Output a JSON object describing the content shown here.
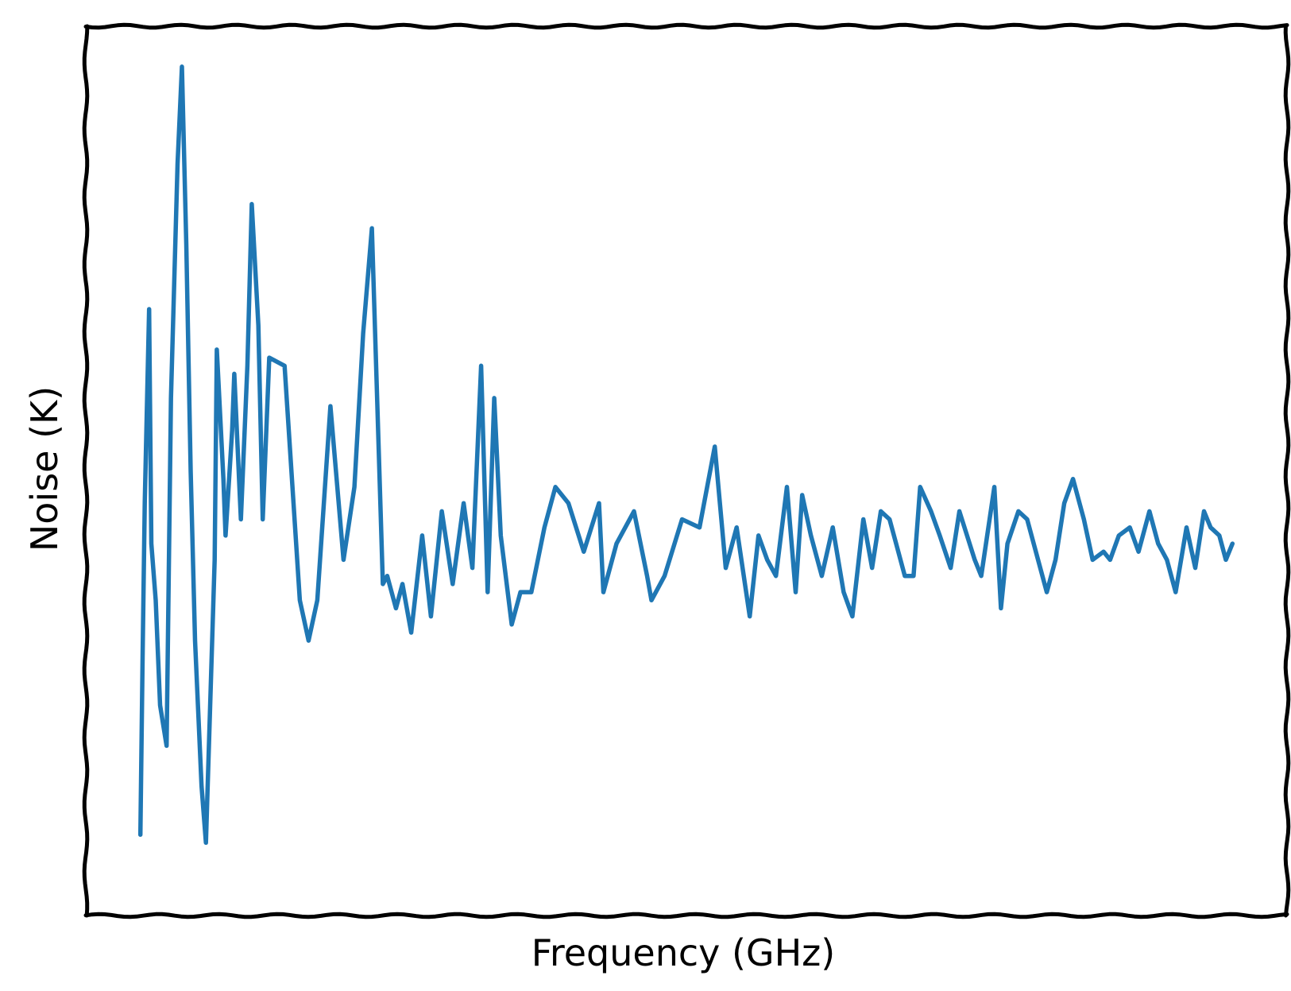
{
  "chart_data": {
    "type": "line",
    "xlabel": "Frequency (GHz)",
    "ylabel": "Noise (K)",
    "xlim": [
      -2.5,
      52.5
    ],
    "ylim": [
      -0.5,
      10.5
    ],
    "grid": false,
    "line_color": "#1f77b4",
    "series": [
      {
        "points": [
          [
            0.0,
            0.5
          ],
          [
            0.1,
            2.7
          ],
          [
            0.2,
            4.6
          ],
          [
            0.4,
            7.0
          ],
          [
            0.5,
            4.1
          ],
          [
            0.7,
            3.4
          ],
          [
            0.9,
            2.1
          ],
          [
            1.2,
            1.6
          ],
          [
            1.4,
            5.9
          ],
          [
            1.7,
            8.8
          ],
          [
            1.9,
            10.0
          ],
          [
            2.1,
            7.8
          ],
          [
            2.3,
            5.0
          ],
          [
            2.5,
            2.9
          ],
          [
            2.8,
            1.1
          ],
          [
            3.0,
            0.4
          ],
          [
            3.4,
            3.9
          ],
          [
            3.5,
            6.5
          ],
          [
            3.8,
            4.9
          ],
          [
            3.9,
            4.2
          ],
          [
            4.2,
            5.5
          ],
          [
            4.3,
            6.2
          ],
          [
            4.6,
            4.4
          ],
          [
            4.9,
            6.3
          ],
          [
            5.1,
            8.3
          ],
          [
            5.4,
            6.8
          ],
          [
            5.6,
            4.4
          ],
          [
            5.9,
            6.4
          ],
          [
            6.6,
            6.3
          ],
          [
            7.3,
            3.4
          ],
          [
            7.7,
            2.9
          ],
          [
            8.1,
            3.4
          ],
          [
            8.7,
            5.8
          ],
          [
            9.3,
            3.9
          ],
          [
            9.8,
            4.8
          ],
          [
            10.2,
            6.7
          ],
          [
            10.6,
            8.0
          ],
          [
            11.1,
            3.6
          ],
          [
            11.3,
            3.7
          ],
          [
            11.7,
            3.3
          ],
          [
            12.0,
            3.6
          ],
          [
            12.4,
            3.0
          ],
          [
            12.9,
            4.2
          ],
          [
            13.3,
            3.2
          ],
          [
            13.8,
            4.5
          ],
          [
            14.3,
            3.6
          ],
          [
            14.8,
            4.6
          ],
          [
            15.2,
            3.8
          ],
          [
            15.6,
            6.3
          ],
          [
            15.9,
            3.5
          ],
          [
            16.2,
            5.9
          ],
          [
            16.5,
            4.2
          ],
          [
            17.0,
            3.1
          ],
          [
            17.4,
            3.5
          ],
          [
            17.9,
            3.5
          ],
          [
            18.5,
            4.3
          ],
          [
            19.0,
            4.8
          ],
          [
            19.6,
            4.6
          ],
          [
            20.3,
            4.0
          ],
          [
            21.0,
            4.6
          ],
          [
            21.2,
            3.5
          ],
          [
            21.8,
            4.1
          ],
          [
            22.6,
            4.5
          ],
          [
            23.2,
            3.7
          ],
          [
            23.4,
            3.4
          ],
          [
            24.0,
            3.7
          ],
          [
            24.8,
            4.4
          ],
          [
            25.6,
            4.3
          ],
          [
            26.3,
            5.3
          ],
          [
            26.8,
            3.8
          ],
          [
            27.3,
            4.3
          ],
          [
            27.9,
            3.2
          ],
          [
            28.3,
            4.2
          ],
          [
            28.7,
            3.9
          ],
          [
            29.1,
            3.7
          ],
          [
            29.6,
            4.8
          ],
          [
            30.0,
            3.5
          ],
          [
            30.3,
            4.7
          ],
          [
            30.7,
            4.2
          ],
          [
            31.2,
            3.7
          ],
          [
            31.7,
            4.3
          ],
          [
            32.2,
            3.5
          ],
          [
            32.6,
            3.2
          ],
          [
            33.1,
            4.4
          ],
          [
            33.5,
            3.8
          ],
          [
            33.9,
            4.5
          ],
          [
            34.3,
            4.4
          ],
          [
            34.7,
            4.0
          ],
          [
            35.0,
            3.7
          ],
          [
            35.4,
            3.7
          ],
          [
            35.7,
            4.8
          ],
          [
            36.2,
            4.5
          ],
          [
            36.6,
            4.2
          ],
          [
            37.1,
            3.8
          ],
          [
            37.5,
            4.5
          ],
          [
            38.2,
            3.9
          ],
          [
            38.5,
            3.7
          ],
          [
            39.1,
            4.8
          ],
          [
            39.4,
            3.3
          ],
          [
            39.7,
            4.1
          ],
          [
            40.2,
            4.5
          ],
          [
            40.6,
            4.4
          ],
          [
            41.1,
            3.9
          ],
          [
            41.5,
            3.5
          ],
          [
            41.9,
            3.9
          ],
          [
            42.3,
            4.6
          ],
          [
            42.7,
            4.9
          ],
          [
            43.2,
            4.4
          ],
          [
            43.6,
            3.9
          ],
          [
            44.1,
            4.0
          ],
          [
            44.4,
            3.9
          ],
          [
            44.8,
            4.2
          ],
          [
            45.3,
            4.3
          ],
          [
            45.7,
            4.0
          ],
          [
            46.2,
            4.5
          ],
          [
            46.6,
            4.1
          ],
          [
            47.0,
            3.9
          ],
          [
            47.4,
            3.5
          ],
          [
            47.9,
            4.3
          ],
          [
            48.3,
            3.8
          ],
          [
            48.7,
            4.5
          ],
          [
            49.0,
            4.3
          ],
          [
            49.4,
            4.2
          ],
          [
            49.7,
            3.9
          ],
          [
            50.0,
            4.1
          ]
        ]
      }
    ]
  }
}
